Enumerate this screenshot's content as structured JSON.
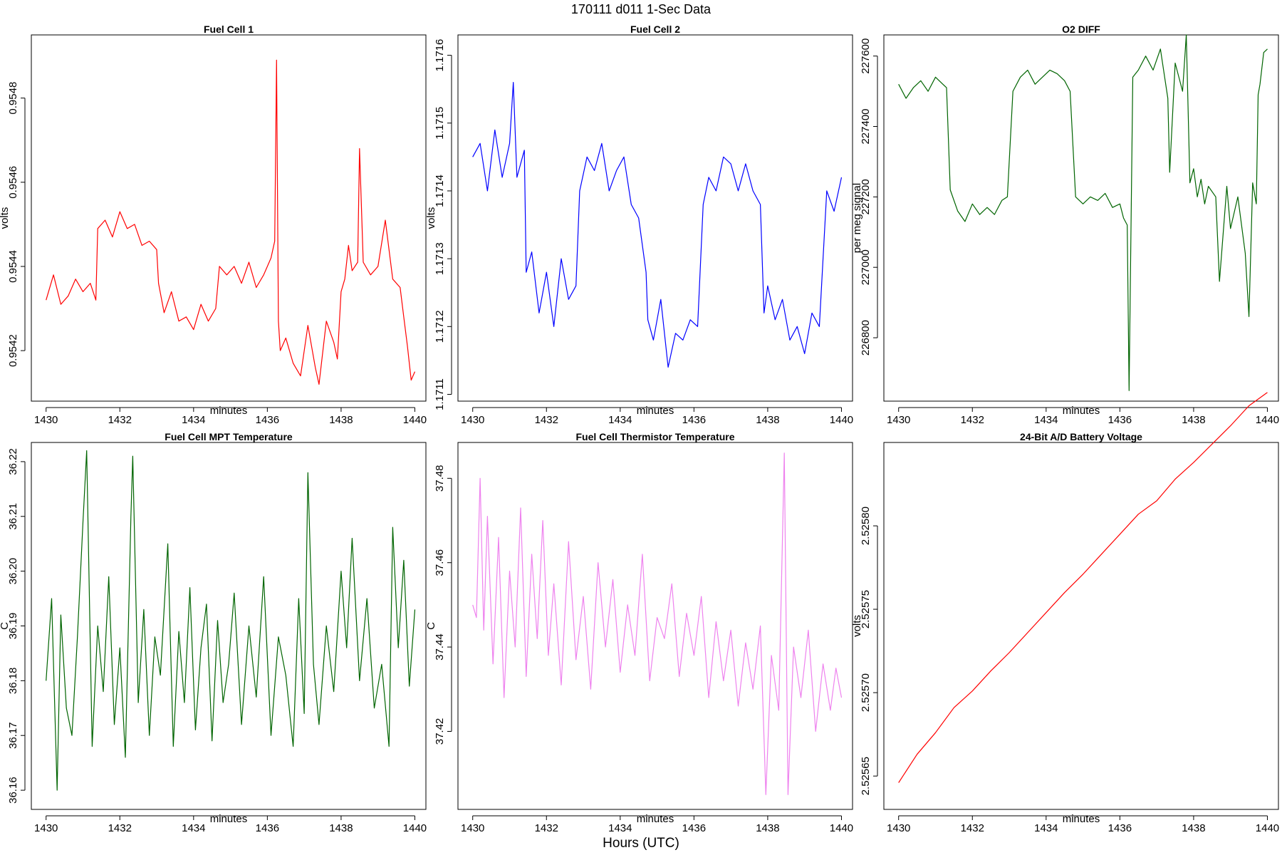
{
  "figure": {
    "suptitle": "170111   d011   1-Sec Data",
    "outer_xlabel": "Hours (UTC)"
  },
  "chart_data": [
    {
      "type": "line",
      "title": "Fuel Cell 1",
      "xlabel": "minutes",
      "ylabel": "volts",
      "xlim": [
        1429.6,
        1440.3
      ],
      "ylim": [
        0.95408,
        0.95495
      ],
      "xticks": [
        1430,
        1432,
        1434,
        1436,
        1438,
        1440
      ],
      "xtick_labels": [
        "1430",
        "1432",
        "1434",
        "1436",
        "1438",
        "1440"
      ],
      "yticks": [
        0.9542,
        0.9544,
        0.9546,
        0.9548
      ],
      "ytick_labels": [
        "0.9542",
        "0.9544",
        "0.9546",
        "0.9548"
      ],
      "color": "#ff0000",
      "series": [
        {
          "x": [
            1430.0,
            1430.2,
            1430.4,
            1430.6,
            1430.8,
            1431.0,
            1431.2,
            1431.35,
            1431.4,
            1431.6,
            1431.8,
            1432.0,
            1432.2,
            1432.4,
            1432.6,
            1432.8,
            1433.0,
            1433.05,
            1433.2,
            1433.4,
            1433.6,
            1433.8,
            1434.0,
            1434.2,
            1434.4,
            1434.6,
            1434.7,
            1434.9,
            1435.1,
            1435.3,
            1435.5,
            1435.7,
            1435.9,
            1436.1,
            1436.2,
            1436.25,
            1436.3,
            1436.35,
            1436.5,
            1436.7,
            1436.9,
            1437.1,
            1437.3,
            1437.4,
            1437.6,
            1437.8,
            1437.9,
            1438.0,
            1438.1,
            1438.2,
            1438.3,
            1438.45,
            1438.5,
            1438.6,
            1438.8,
            1439.0,
            1439.2,
            1439.4,
            1439.6,
            1439.7,
            1439.8,
            1439.9,
            1440.0
          ],
          "y": [
            0.95432,
            0.95438,
            0.95431,
            0.95433,
            0.95437,
            0.95434,
            0.95436,
            0.95432,
            0.95449,
            0.95451,
            0.95447,
            0.95453,
            0.95449,
            0.9545,
            0.95445,
            0.95446,
            0.95444,
            0.95436,
            0.95429,
            0.95434,
            0.95427,
            0.95428,
            0.95425,
            0.95431,
            0.95427,
            0.9543,
            0.9544,
            0.95438,
            0.9544,
            0.95436,
            0.95441,
            0.95435,
            0.95438,
            0.95442,
            0.95446,
            0.95489,
            0.95427,
            0.9542,
            0.95423,
            0.95417,
            0.95414,
            0.95426,
            0.95416,
            0.95412,
            0.95427,
            0.95422,
            0.95418,
            0.95434,
            0.95437,
            0.95445,
            0.95439,
            0.95441,
            0.95468,
            0.95441,
            0.95438,
            0.9544,
            0.95451,
            0.95437,
            0.95435,
            0.95428,
            0.95421,
            0.95413,
            0.95415
          ]
        }
      ]
    },
    {
      "type": "line",
      "title": "Fuel Cell 2",
      "xlabel": "minutes",
      "ylabel": "volts",
      "xlim": [
        1429.6,
        1440.3
      ],
      "ylim": [
        1.17109,
        1.17163
      ],
      "xticks": [
        1430,
        1432,
        1434,
        1436,
        1438,
        1440
      ],
      "xtick_labels": [
        "1430",
        "1432",
        "1434",
        "1436",
        "1438",
        "1440"
      ],
      "yticks": [
        1.1711,
        1.1712,
        1.1713,
        1.1714,
        1.1715,
        1.1716
      ],
      "ytick_labels": [
        "1.1711",
        "1.1712",
        "1.1713",
        "1.1714",
        "1.1715",
        "1.1716"
      ],
      "color": "#0000ff",
      "series": [
        {
          "x": [
            1430.0,
            1430.2,
            1430.4,
            1430.6,
            1430.8,
            1431.0,
            1431.1,
            1431.2,
            1431.4,
            1431.45,
            1431.6,
            1431.8,
            1432.0,
            1432.2,
            1432.4,
            1432.6,
            1432.8,
            1432.9,
            1433.1,
            1433.3,
            1433.5,
            1433.7,
            1433.9,
            1434.1,
            1434.3,
            1434.5,
            1434.7,
            1434.75,
            1434.9,
            1435.1,
            1435.3,
            1435.5,
            1435.7,
            1435.9,
            1436.1,
            1436.25,
            1436.4,
            1436.6,
            1436.8,
            1437.0,
            1437.2,
            1437.4,
            1437.6,
            1437.8,
            1437.9,
            1438.0,
            1438.2,
            1438.4,
            1438.6,
            1438.8,
            1439.0,
            1439.2,
            1439.4,
            1439.6,
            1439.8,
            1440.0
          ],
          "y": [
            1.17145,
            1.17147,
            1.1714,
            1.17149,
            1.17142,
            1.17147,
            1.17156,
            1.17142,
            1.17146,
            1.17128,
            1.17131,
            1.17122,
            1.17128,
            1.1712,
            1.1713,
            1.17124,
            1.17126,
            1.1714,
            1.17145,
            1.17143,
            1.17147,
            1.1714,
            1.17143,
            1.17145,
            1.17138,
            1.17136,
            1.17128,
            1.17121,
            1.17118,
            1.17124,
            1.17114,
            1.17119,
            1.17118,
            1.17121,
            1.1712,
            1.17138,
            1.17142,
            1.1714,
            1.17145,
            1.17144,
            1.1714,
            1.17144,
            1.1714,
            1.17138,
            1.17122,
            1.17126,
            1.17121,
            1.17124,
            1.17118,
            1.1712,
            1.17116,
            1.17122,
            1.1712,
            1.1714,
            1.17137,
            1.17142
          ]
        }
      ]
    },
    {
      "type": "line",
      "title": "O2 DIFF",
      "xlabel": "minutes",
      "ylabel": "per meg signal",
      "xlim": [
        1429.6,
        1440.3
      ],
      "ylim": [
        226620,
        227660
      ],
      "xticks": [
        1430,
        1432,
        1434,
        1436,
        1438,
        1440
      ],
      "xtick_labels": [
        "1430",
        "1432",
        "1434",
        "1436",
        "1438",
        "1440"
      ],
      "yticks": [
        226800,
        227000,
        227200,
        227400,
        227600
      ],
      "ytick_labels": [
        "226800",
        "227000",
        "227200",
        "227400",
        "227600"
      ],
      "color": "#006400",
      "series": [
        {
          "x": [
            1430.0,
            1430.2,
            1430.4,
            1430.6,
            1430.8,
            1431.0,
            1431.2,
            1431.3,
            1431.4,
            1431.6,
            1431.8,
            1432.0,
            1432.2,
            1432.4,
            1432.6,
            1432.8,
            1432.95,
            1433.1,
            1433.3,
            1433.5,
            1433.7,
            1433.9,
            1434.1,
            1434.3,
            1434.5,
            1434.65,
            1434.8,
            1435.0,
            1435.2,
            1435.4,
            1435.6,
            1435.8,
            1436.0,
            1436.1,
            1436.2,
            1436.25,
            1436.35,
            1436.5,
            1436.7,
            1436.9,
            1437.1,
            1437.3,
            1437.35,
            1437.5,
            1437.7,
            1437.8,
            1437.9,
            1438.0,
            1438.1,
            1438.2,
            1438.3,
            1438.4,
            1438.6,
            1438.7,
            1438.9,
            1439.0,
            1439.2,
            1439.4,
            1439.5,
            1439.6,
            1439.7,
            1439.75,
            1439.8,
            1439.9,
            1440.0
          ],
          "y": [
            227520,
            227480,
            227510,
            227530,
            227500,
            227540,
            227520,
            227510,
            227220,
            227160,
            227130,
            227180,
            227150,
            227170,
            227150,
            227190,
            227200,
            227500,
            227540,
            227560,
            227520,
            227540,
            227560,
            227550,
            227530,
            227500,
            227200,
            227180,
            227200,
            227190,
            227210,
            227170,
            227180,
            227140,
            227120,
            226650,
            227540,
            227560,
            227600,
            227560,
            227620,
            227480,
            227270,
            227580,
            227500,
            227660,
            227240,
            227280,
            227200,
            227250,
            227180,
            227230,
            227200,
            226960,
            227230,
            227110,
            227200,
            227040,
            226860,
            227240,
            227180,
            227490,
            227520,
            227610,
            227620
          ]
        }
      ]
    },
    {
      "type": "line",
      "title": "Fuel Cell MPT Temperature",
      "xlabel": "minutes",
      "ylabel": "C",
      "xlim": [
        1429.6,
        1440.3
      ],
      "ylim": [
        36.1565,
        36.2235
      ],
      "xticks": [
        1430,
        1432,
        1434,
        1436,
        1438,
        1440
      ],
      "xtick_labels": [
        "1430",
        "1432",
        "1434",
        "1436",
        "1438",
        "1440"
      ],
      "yticks": [
        36.16,
        36.17,
        36.18,
        36.19,
        36.2,
        36.21,
        36.22
      ],
      "ytick_labels": [
        "36.16",
        "36.17",
        "36.18",
        "36.19",
        "36.20",
        "36.21",
        "36.22"
      ],
      "color": "#006400",
      "series": [
        {
          "x": [
            1430.0,
            1430.15,
            1430.3,
            1430.4,
            1430.55,
            1430.7,
            1430.85,
            1431.0,
            1431.1,
            1431.25,
            1431.4,
            1431.55,
            1431.7,
            1431.85,
            1432.0,
            1432.15,
            1432.3,
            1432.35,
            1432.5,
            1432.65,
            1432.8,
            1432.95,
            1433.1,
            1433.3,
            1433.45,
            1433.6,
            1433.75,
            1433.9,
            1434.05,
            1434.2,
            1434.35,
            1434.5,
            1434.65,
            1434.8,
            1434.95,
            1435.1,
            1435.3,
            1435.5,
            1435.7,
            1435.9,
            1436.1,
            1436.3,
            1436.5,
            1436.7,
            1436.85,
            1437.0,
            1437.1,
            1437.25,
            1437.4,
            1437.6,
            1437.8,
            1438.0,
            1438.15,
            1438.3,
            1438.5,
            1438.7,
            1438.9,
            1439.1,
            1439.3,
            1439.4,
            1439.55,
            1439.7,
            1439.85,
            1440.0
          ],
          "y": [
            36.18,
            36.195,
            36.16,
            36.192,
            36.175,
            36.17,
            36.188,
            36.209,
            36.222,
            36.168,
            36.19,
            36.178,
            36.199,
            36.172,
            36.186,
            36.166,
            36.21,
            36.221,
            36.176,
            36.193,
            36.17,
            36.188,
            36.181,
            36.205,
            36.168,
            36.189,
            36.176,
            36.197,
            36.171,
            36.186,
            36.194,
            36.169,
            36.191,
            36.176,
            36.183,
            36.196,
            36.172,
            36.19,
            36.177,
            36.199,
            36.17,
            36.188,
            36.181,
            36.168,
            36.195,
            36.174,
            36.218,
            36.183,
            36.172,
            36.19,
            36.178,
            36.2,
            36.186,
            36.206,
            36.18,
            36.195,
            36.175,
            36.183,
            36.168,
            36.208,
            36.186,
            36.202,
            36.179,
            36.193
          ]
        }
      ]
    },
    {
      "type": "line",
      "title": "Fuel Cell Thermistor Temperature",
      "xlabel": "minutes",
      "ylabel": "C",
      "xlim": [
        1429.6,
        1440.3
      ],
      "ylim": [
        37.4015,
        37.4885
      ],
      "xticks": [
        1430,
        1432,
        1434,
        1436,
        1438,
        1440
      ],
      "xtick_labels": [
        "1430",
        "1432",
        "1434",
        "1436",
        "1438",
        "1440"
      ],
      "yticks": [
        37.42,
        37.44,
        37.46,
        37.48
      ],
      "ytick_labels": [
        "37.42",
        "37.44",
        "37.46",
        "37.48"
      ],
      "color": "#ee82ee",
      "series": [
        {
          "x": [
            1430.0,
            1430.1,
            1430.2,
            1430.3,
            1430.4,
            1430.55,
            1430.7,
            1430.85,
            1431.0,
            1431.15,
            1431.3,
            1431.45,
            1431.6,
            1431.75,
            1431.9,
            1432.05,
            1432.2,
            1432.4,
            1432.6,
            1432.8,
            1433.0,
            1433.2,
            1433.4,
            1433.6,
            1433.8,
            1434.0,
            1434.2,
            1434.4,
            1434.6,
            1434.8,
            1435.0,
            1435.2,
            1435.4,
            1435.6,
            1435.8,
            1436.0,
            1436.2,
            1436.4,
            1436.6,
            1436.8,
            1437.0,
            1437.2,
            1437.4,
            1437.6,
            1437.8,
            1437.95,
            1438.1,
            1438.3,
            1438.45,
            1438.55,
            1438.7,
            1438.9,
            1439.1,
            1439.3,
            1439.5,
            1439.7,
            1439.85,
            1440.0
          ],
          "y": [
            37.45,
            37.447,
            37.48,
            37.444,
            37.471,
            37.436,
            37.466,
            37.428,
            37.458,
            37.44,
            37.473,
            37.433,
            37.462,
            37.442,
            37.47,
            37.438,
            37.455,
            37.431,
            37.465,
            37.437,
            37.452,
            37.43,
            37.46,
            37.44,
            37.456,
            37.434,
            37.45,
            37.438,
            37.462,
            37.432,
            37.447,
            37.442,
            37.455,
            37.433,
            37.448,
            37.438,
            37.452,
            37.428,
            37.446,
            37.432,
            37.444,
            37.426,
            37.441,
            37.43,
            37.445,
            37.405,
            37.438,
            37.425,
            37.486,
            37.405,
            37.44,
            37.428,
            37.444,
            37.42,
            37.436,
            37.425,
            37.435,
            37.428
          ]
        }
      ]
    },
    {
      "type": "line",
      "title": "24-Bit A/D Battery Voltage",
      "xlabel": "minutes",
      "ylabel": "volts",
      "xlim": [
        1429.6,
        1440.3
      ],
      "ylim": [
        2.52563,
        2.52585
      ],
      "xticks": [
        1430,
        1432,
        1434,
        1436,
        1438,
        1440
      ],
      "xtick_labels": [
        "1430",
        "1432",
        "1434",
        "1436",
        "1438",
        "1440"
      ],
      "yticks": [
        2.52565,
        2.5257,
        2.52575,
        2.5258
      ],
      "ytick_labels": [
        "2.52565",
        "2.52570",
        "2.52575",
        "2.52580"
      ],
      "color": "#ff0000",
      "series": [
        {
          "x": [
            1430.0,
            1430.5,
            1431.0,
            1431.5,
            1432.0,
            1432.5,
            1433.0,
            1433.5,
            1434.0,
            1434.5,
            1435.0,
            1435.5,
            1436.0,
            1436.5,
            1437.0,
            1437.5,
            1438.0,
            1438.5,
            1439.0,
            1439.5,
            1440.0
          ],
          "y": [
            2.525646,
            2.525663,
            2.525676,
            2.525691,
            2.525701,
            2.525713,
            2.525724,
            2.525736,
            2.525748,
            2.52576,
            2.525771,
            2.525783,
            2.525795,
            2.525807,
            2.525815,
            2.525828,
            2.525838,
            2.525849,
            2.52586,
            2.525872,
            2.52588
          ]
        }
      ]
    }
  ]
}
